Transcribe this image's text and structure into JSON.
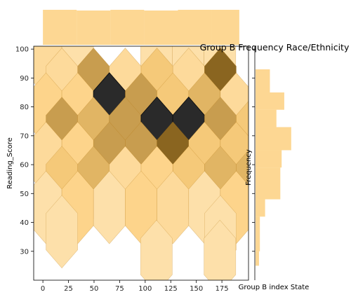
{
  "chart_data": {
    "type": "hexbin",
    "title": "Group B Frequency Race/Ethnicity",
    "xlabel": "Group B index State",
    "ylabel": "Reading_Score",
    "right_marginal_label": "Frequency",
    "xlim": [
      -9,
      201
    ],
    "ylim": [
      20,
      101
    ],
    "x_ticks": [
      0,
      25,
      50,
      75,
      100,
      125,
      150,
      175
    ],
    "y_ticks": [
      30,
      40,
      50,
      60,
      70,
      80,
      90,
      100
    ],
    "grid": false,
    "colors": {
      "base": "#fbb73b",
      "dark": "#2a2a2a"
    },
    "hex_size": {
      "dx": 15.5,
      "dy": 6.3
    },
    "hexbins": [
      {
        "x": 3,
        "y": 96.2,
        "count": 2
      },
      {
        "x": 34,
        "y": 96.2,
        "count": 1
      },
      {
        "x": 111,
        "y": 96.2,
        "count": 1
      },
      {
        "x": 142,
        "y": 96.2,
        "count": 1
      },
      {
        "x": 173,
        "y": 96.2,
        "count": 1
      },
      {
        "x": 18.5,
        "y": 87.8,
        "count": 2
      },
      {
        "x": 49.5,
        "y": 87.8,
        "count": 6
      },
      {
        "x": 80.5,
        "y": 87.8,
        "count": 2
      },
      {
        "x": 111.5,
        "y": 87.8,
        "count": 4
      },
      {
        "x": 142.5,
        "y": 87.8,
        "count": 2
      },
      {
        "x": 173.5,
        "y": 87.8,
        "count": 8
      },
      {
        "x": 3,
        "y": 79.2,
        "count": 3
      },
      {
        "x": 34,
        "y": 79.2,
        "count": 3
      },
      {
        "x": 65,
        "y": 79.2,
        "count": 10
      },
      {
        "x": 96,
        "y": 79.2,
        "count": 6
      },
      {
        "x": 127,
        "y": 79.2,
        "count": 4
      },
      {
        "x": 158,
        "y": 79.2,
        "count": 5
      },
      {
        "x": 189,
        "y": 79.2,
        "count": 2
      },
      {
        "x": 18.5,
        "y": 70.8,
        "count": 6
      },
      {
        "x": 49.5,
        "y": 70.8,
        "count": 5
      },
      {
        "x": 80.5,
        "y": 70.8,
        "count": 6
      },
      {
        "x": 111.5,
        "y": 70.8,
        "count": 10
      },
      {
        "x": 142.5,
        "y": 70.8,
        "count": 10
      },
      {
        "x": 173.5,
        "y": 70.8,
        "count": 6
      },
      {
        "x": 204.5,
        "y": 70.8,
        "count": 4
      },
      {
        "x": 3,
        "y": 62.2,
        "count": 2
      },
      {
        "x": 34,
        "y": 62.2,
        "count": 3
      },
      {
        "x": 65,
        "y": 62.2,
        "count": 6
      },
      {
        "x": 96,
        "y": 62.2,
        "count": 6
      },
      {
        "x": 127,
        "y": 62.2,
        "count": 8
      },
      {
        "x": 158,
        "y": 62.2,
        "count": 4
      },
      {
        "x": 189,
        "y": 62.2,
        "count": 4
      },
      {
        "x": 18.5,
        "y": 53.8,
        "count": 4
      },
      {
        "x": 49.5,
        "y": 53.8,
        "count": 5
      },
      {
        "x": 80.5,
        "y": 53.8,
        "count": 2
      },
      {
        "x": 111.5,
        "y": 53.8,
        "count": 3
      },
      {
        "x": 142.5,
        "y": 53.8,
        "count": 4
      },
      {
        "x": 173.5,
        "y": 53.8,
        "count": 5
      },
      {
        "x": 204.5,
        "y": 53.8,
        "count": 5
      },
      {
        "x": 3,
        "y": 45.2,
        "count": 1
      },
      {
        "x": 34,
        "y": 45.2,
        "count": 3
      },
      {
        "x": 65,
        "y": 45.2,
        "count": 1
      },
      {
        "x": 96,
        "y": 45.2,
        "count": 3
      },
      {
        "x": 127,
        "y": 45.2,
        "count": 2
      },
      {
        "x": 158,
        "y": 45.2,
        "count": 1
      },
      {
        "x": 189,
        "y": 45.2,
        "count": 3
      },
      {
        "x": 18.5,
        "y": 36.8,
        "count": 1
      },
      {
        "x": 173.5,
        "y": 36.8,
        "count": 1
      },
      {
        "x": 111,
        "y": 28.2,
        "count": 1
      },
      {
        "x": 173,
        "y": 28.2,
        "count": 1
      }
    ],
    "top_marginal": {
      "bins": [
        {
          "x0": 0,
          "x1": 33,
          "value": 1.0
        },
        {
          "x0": 33,
          "x1": 66,
          "value": 0.98
        },
        {
          "x0": 66,
          "x1": 99,
          "value": 1.0
        },
        {
          "x0": 99,
          "x1": 132,
          "value": 0.98
        },
        {
          "x0": 132,
          "x1": 165,
          "value": 1.0
        },
        {
          "x0": 165,
          "x1": 192,
          "value": 1.0
        }
      ]
    },
    "right_marginal": {
      "bins": [
        {
          "y0": 85,
          "y1": 93,
          "value": 0.33
        },
        {
          "y0": 79,
          "y1": 85,
          "value": 0.66
        },
        {
          "y0": 73,
          "y1": 79,
          "value": 0.48
        },
        {
          "y0": 65,
          "y1": 73,
          "value": 0.82
        },
        {
          "y0": 59,
          "y1": 65,
          "value": 0.6
        },
        {
          "y0": 48,
          "y1": 59,
          "value": 0.57
        },
        {
          "y0": 42,
          "y1": 48,
          "value": 0.22
        },
        {
          "y0": 30,
          "y1": 42,
          "value": 0.1
        },
        {
          "y0": 25,
          "y1": 30,
          "value": 0.08
        }
      ]
    }
  }
}
